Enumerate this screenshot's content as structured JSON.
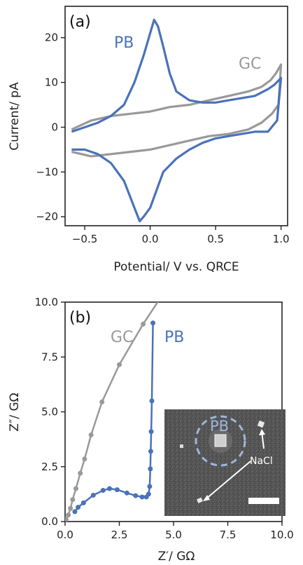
{
  "chart_data": [
    {
      "type": "line",
      "panel_label": "(a)",
      "xlabel": "Potential/ V vs. QRCE",
      "ylabel": "Current/ pA",
      "xlim": [
        -0.65,
        1.05
      ],
      "ylim": [
        -22,
        27
      ],
      "xticks": [
        -0.5,
        0.0,
        0.5,
        1.0
      ],
      "xtick_labels": [
        "−0.5",
        "0.0",
        "0.5",
        "1.0"
      ],
      "yticks": [
        -20,
        -10,
        0,
        10,
        20
      ],
      "ytick_labels": [
        "−20",
        "−10",
        "0",
        "10",
        "20"
      ],
      "grid": false,
      "series": [
        {
          "name": "GC",
          "color": "#999999",
          "x": [
            -0.6,
            -0.45,
            -0.3,
            -0.15,
            0.0,
            0.15,
            0.3,
            0.45,
            0.6,
            0.75,
            0.85,
            0.92,
            0.96,
            0.99,
            1.0,
            0.98,
            0.93,
            0.85,
            0.75,
            0.6,
            0.45,
            0.3,
            0.15,
            0.0,
            -0.15,
            -0.3,
            -0.45,
            -0.6
          ],
          "y": [
            -0.5,
            1.5,
            2.5,
            3.0,
            3.5,
            4.5,
            5.0,
            6.0,
            7.0,
            8.0,
            9.0,
            10.5,
            12.0,
            13.5,
            14.0,
            5.0,
            3.0,
            1.0,
            -0.5,
            -1.5,
            -2.0,
            -3.0,
            -4.0,
            -5.0,
            -5.5,
            -6.0,
            -6.5,
            -5.5
          ]
        },
        {
          "name": "PB",
          "color": "#4a72b8",
          "x": [
            -0.6,
            -0.5,
            -0.4,
            -0.3,
            -0.2,
            -0.12,
            -0.05,
            0.0,
            0.03,
            0.06,
            0.1,
            0.15,
            0.2,
            0.3,
            0.4,
            0.5,
            0.6,
            0.7,
            0.8,
            0.9,
            0.95,
            1.0,
            0.97,
            0.9,
            0.8,
            0.7,
            0.6,
            0.5,
            0.4,
            0.3,
            0.2,
            0.1,
            0.05,
            0.0,
            -0.05,
            -0.08,
            -0.12,
            -0.2,
            -0.3,
            -0.4,
            -0.5,
            -0.6
          ],
          "y": [
            -1.0,
            0.0,
            1.0,
            2.5,
            5.0,
            10.0,
            16.0,
            21.0,
            24.0,
            22.5,
            18.0,
            12.0,
            8.0,
            6.0,
            5.5,
            5.5,
            6.0,
            6.5,
            7.0,
            8.5,
            9.5,
            11.0,
            1.5,
            -1.0,
            -1.0,
            -1.5,
            -2.0,
            -2.5,
            -3.5,
            -5.0,
            -7.0,
            -10.0,
            -14.0,
            -18.0,
            -20.0,
            -21.0,
            -18.0,
            -12.0,
            -8.0,
            -6.0,
            -5.0,
            -5.0
          ]
        }
      ]
    },
    {
      "type": "line",
      "panel_label": "(b)",
      "xlabel": "Z′/ GΩ",
      "ylabel": "Z″/ GΩ",
      "xlim": [
        0,
        10
      ],
      "ylim": [
        0,
        10
      ],
      "xticks": [
        0.0,
        2.5,
        5.0,
        7.5,
        10.0
      ],
      "xtick_labels": [
        "0.0",
        "2.5",
        "5.0",
        "7.5",
        "10.0"
      ],
      "yticks": [
        0.0,
        2.5,
        5.0,
        7.5,
        10.0
      ],
      "ytick_labels": [
        "0.0",
        "2.5",
        "5.0",
        "7.5",
        "10.0"
      ],
      "grid": false,
      "series": [
        {
          "name": "GC",
          "color": "#999999",
          "x": [
            0.05,
            0.15,
            0.25,
            0.35,
            0.5,
            0.7,
            0.9,
            1.2,
            1.7,
            2.5,
            3.6,
            4.4
          ],
          "y": [
            0.1,
            0.3,
            0.6,
            1.0,
            1.5,
            2.2,
            2.85,
            3.95,
            5.45,
            7.15,
            9.0,
            10.2
          ]
        },
        {
          "name": "PB",
          "color": "#4a72b8",
          "x": [
            0.45,
            0.6,
            0.85,
            1.3,
            1.75,
            2.05,
            2.4,
            2.85,
            3.25,
            3.55,
            3.75,
            3.85,
            3.9,
            3.93,
            3.95,
            3.97,
            4.0,
            4.05
          ],
          "y": [
            0.45,
            0.65,
            0.85,
            1.2,
            1.42,
            1.5,
            1.45,
            1.3,
            1.18,
            1.12,
            1.12,
            1.25,
            1.6,
            2.4,
            3.2,
            4.1,
            5.5,
            9.05
          ]
        }
      ]
    }
  ],
  "inset": {
    "label_pb": "PB",
    "label_nacl": "NaCl"
  }
}
